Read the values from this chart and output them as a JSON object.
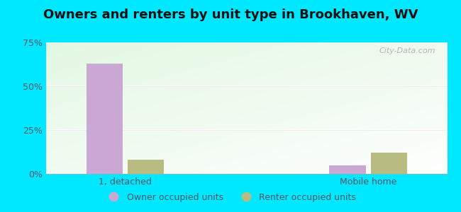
{
  "title": "Owners and renters by unit type in Brookhaven, WV",
  "categories": [
    "1, detached",
    "Mobile home"
  ],
  "owner_values": [
    63.0,
    5.0
  ],
  "renter_values": [
    8.0,
    12.0
  ],
  "owner_color": "#c9a8d4",
  "renter_color": "#b8bc82",
  "ylim": [
    0,
    75
  ],
  "yticks": [
    0,
    25,
    50,
    75
  ],
  "ytick_labels": [
    "0%",
    "25%",
    "50%",
    "75%"
  ],
  "bar_width": 0.3,
  "watermark": "City-Data.com",
  "legend_owner": "Owner occupied units",
  "legend_renter": "Renter occupied units",
  "title_fontsize": 13,
  "tick_fontsize": 9,
  "legend_fontsize": 9,
  "outer_bg": "#00e8ff",
  "plot_bg_colors": [
    "#c8e8c0",
    "#e8f5e0",
    "#f5fff5",
    "#ffffff"
  ],
  "grid_color": "#ddddcc",
  "spine_color": "#aaaaaa",
  "text_color": "#555566"
}
